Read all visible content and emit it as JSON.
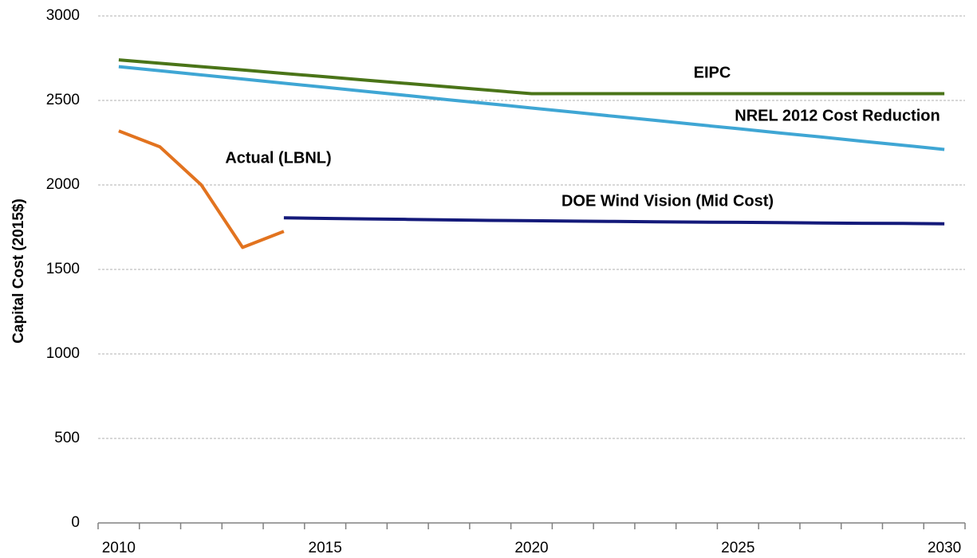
{
  "chart_data": {
    "type": "line",
    "y_label": "Capital Cost (2015$)",
    "categories": [
      "2010",
      null,
      null,
      null,
      null,
      "2015",
      null,
      null,
      null,
      null,
      "2020",
      null,
      null,
      null,
      null,
      "2025",
      null,
      null,
      null,
      null,
      "2030"
    ],
    "series": [
      {
        "name": "EIPC",
        "color": "#4a7418",
        "values": [
          2740,
          2720,
          2700,
          2680,
          2660,
          2640,
          2620,
          2600,
          2580,
          2560,
          2540,
          2540,
          2540,
          2540,
          2540,
          2540,
          2540,
          2540,
          2540,
          2540,
          2540
        ]
      },
      {
        "name": "NREL 2012 Cost Reduction",
        "color": "#3fa6d4",
        "values": [
          2700,
          2676,
          2651,
          2627,
          2602,
          2578,
          2553,
          2529,
          2504,
          2480,
          2455,
          2431,
          2406,
          2382,
          2357,
          2333,
          2308,
          2284,
          2259,
          2235,
          2210
        ]
      },
      {
        "name": "Actual (LBNL)",
        "color": "#e2731f",
        "values": [
          2320,
          2225,
          2000,
          1630,
          1725,
          null,
          null,
          null,
          null,
          null,
          null,
          null,
          null,
          null,
          null,
          null,
          null,
          null,
          null,
          null,
          null
        ]
      },
      {
        "name": "DOE Wind Vision (Mid Cost)",
        "color": "#141a7a",
        "values": [
          null,
          null,
          null,
          null,
          1805,
          1802,
          1799,
          1796,
          1793,
          1790,
          1788,
          1786,
          1784,
          1782,
          1780,
          1779,
          1777,
          1775,
          1773,
          1772,
          1770
        ]
      }
    ],
    "ylim": [
      0,
      3000
    ],
    "yticks": [
      0,
      500,
      1000,
      1500,
      2000,
      2500,
      3000
    ],
    "grid": true
  }
}
